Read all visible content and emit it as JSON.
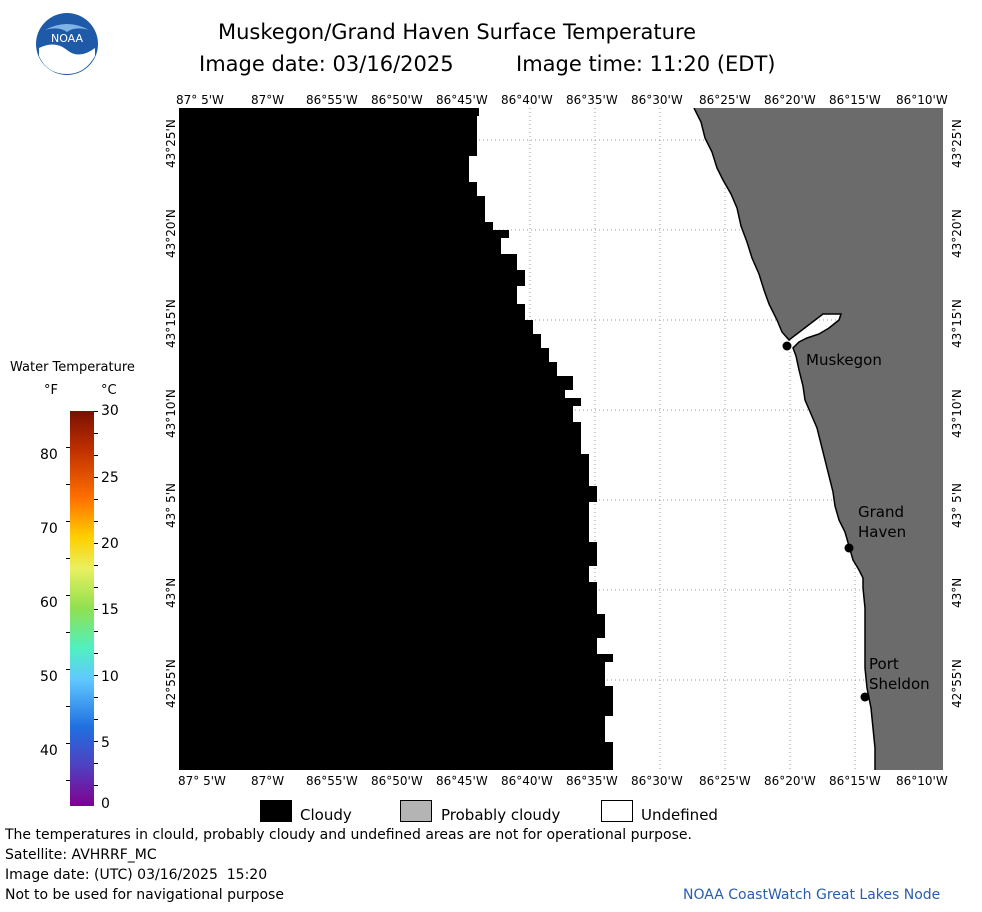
{
  "title": "Muskegon/Grand Haven Surface Temperature",
  "subtitle": {
    "image_date": "Image date: 03/16/2025",
    "image_time": "Image time: 11:20 (EDT)"
  },
  "logo": {
    "text": "NOAA",
    "icon": "noaa-logo-icon"
  },
  "colors": {
    "land": "#6b6b6b",
    "cloud": "#000000",
    "undefined": "#ffffff",
    "probably_cloudy": "#b4b4b4",
    "grid": "#9a9a9a",
    "credit": "#2a5db0"
  },
  "lon_ticks": [
    "87° 5'W",
    "87°W",
    "86°55'W",
    "86°50'W",
    "86°45'W",
    "86°40'W",
    "86°35'W",
    "86°30'W",
    "86°25'W",
    "86°20'W",
    "86°15'W",
    "86°10'W"
  ],
  "lat_ticks": [
    "43°25'N",
    "43°20'N",
    "43°15'N",
    "43°10'N",
    "43° 5'N",
    "43°N",
    "42°55'N"
  ],
  "cities": [
    {
      "name": "Muskegon"
    },
    {
      "name": "Grand Haven"
    },
    {
      "name": "Port Sheldon"
    }
  ],
  "colorbar": {
    "title": "Water Temperature",
    "unit_f": "°F",
    "unit_c": "°C",
    "f_labels": [
      "80",
      "70",
      "60",
      "50",
      "40"
    ],
    "c_labels": [
      "30",
      "25",
      "20",
      "15",
      "10",
      "5",
      "0"
    ]
  },
  "legend": [
    {
      "label": "Cloudy"
    },
    {
      "label": "Probably cloudy"
    },
    {
      "label": "Undefined"
    }
  ],
  "footer": {
    "disclaimer": "The temperatures in clould, probably cloudy and undefined areas are not for operational purpose.",
    "satellite": "Satellite: AVHRRF_MC",
    "utc_date": "Image date: (UTC) 03/16/2025  15:20",
    "nav_warning": "Not to be used for navigational purpose",
    "credit": "NOAA CoastWatch Great Lakes Node"
  }
}
